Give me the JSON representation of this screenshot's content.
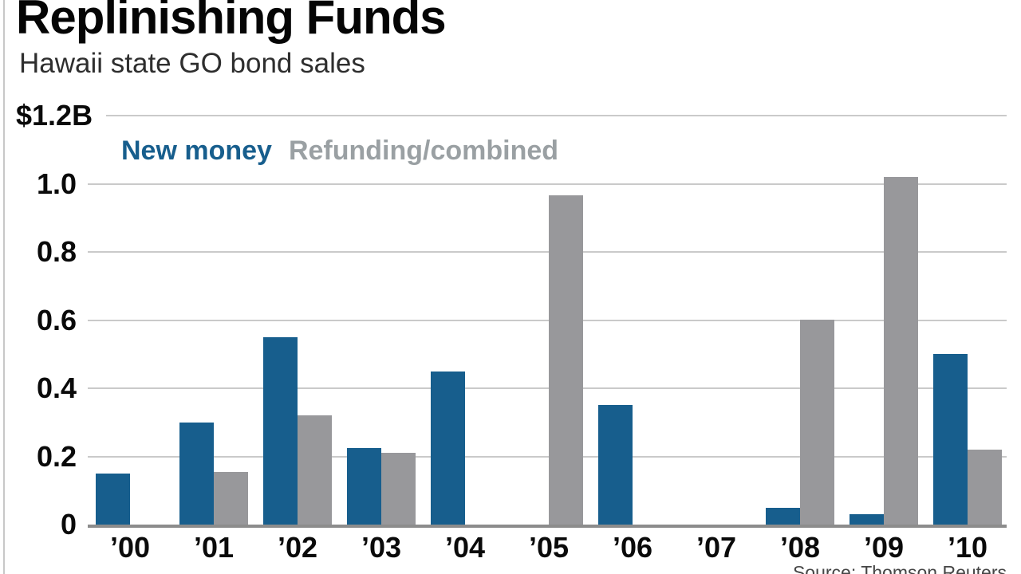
{
  "header": {
    "title": "Replinishing Funds",
    "subtitle": "Hawaii state GO bond sales"
  },
  "legend": {
    "items": [
      {
        "label": "New money",
        "color": "#175e8d"
      },
      {
        "label": "Refunding/combined",
        "color": "#9aa0a3"
      }
    ]
  },
  "source_note": "Source: Thomson Reuters",
  "colors": {
    "new_money_bar": "#175e8d",
    "refunding_bar": "#98989b",
    "gridline": "#cacaca",
    "axis_line": "#8c8c8c",
    "border": "#c8c8c8"
  },
  "chart_data": {
    "type": "bar",
    "title": "Replinishing Funds",
    "subtitle": "Hawaii state GO bond sales",
    "categories": [
      "’00",
      "’01",
      "’02",
      "’03",
      "’04",
      "’05",
      "’06",
      "’07",
      "’08",
      "’09",
      "’10"
    ],
    "series": [
      {
        "name": "New money",
        "color": "#175e8d",
        "values": [
          0.15,
          0.3,
          0.55,
          0.225,
          0.45,
          0,
          0.35,
          0,
          0.05,
          0.03,
          0.5
        ]
      },
      {
        "name": "Refunding/combined",
        "color": "#98989b",
        "values": [
          0,
          0.155,
          0.32,
          0.21,
          0,
          0.965,
          0,
          0,
          0.6,
          1.02,
          0.22
        ]
      }
    ],
    "ylim": [
      0,
      1.2
    ],
    "yticks": [
      {
        "value": 1.2,
        "label": "$1.2B"
      },
      {
        "value": 1.0,
        "label": "1.0"
      },
      {
        "value": 0.8,
        "label": "0.8"
      },
      {
        "value": 0.6,
        "label": "0.6"
      },
      {
        "value": 0.4,
        "label": "0.4"
      },
      {
        "value": 0.2,
        "label": "0.2"
      },
      {
        "value": 0,
        "label": "0"
      }
    ],
    "grid": true,
    "legend_position": "inside-top-left"
  }
}
